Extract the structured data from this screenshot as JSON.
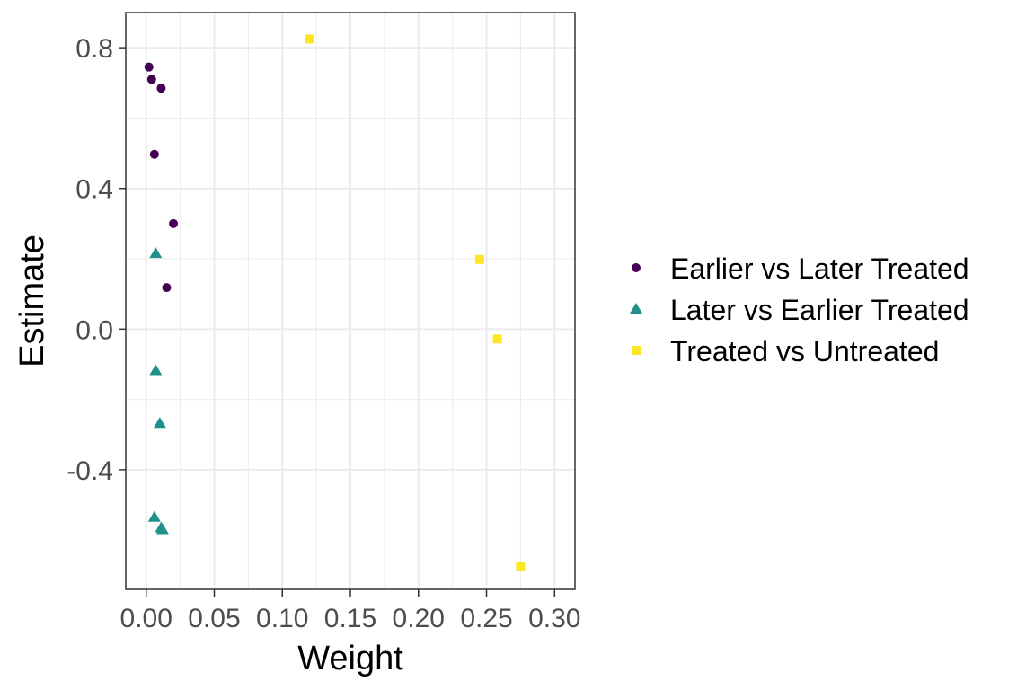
{
  "chart_data": {
    "type": "scatter",
    "title": "",
    "xlabel": "Weight",
    "ylabel": "Estimate",
    "xlim": [
      -0.015,
      0.315
    ],
    "ylim": [
      -0.74,
      0.9
    ],
    "x_ticks": [
      {
        "value": 0.0,
        "label": "0.00"
      },
      {
        "value": 0.05,
        "label": "0.05"
      },
      {
        "value": 0.1,
        "label": "0.10"
      },
      {
        "value": 0.15,
        "label": "0.15"
      },
      {
        "value": 0.2,
        "label": "0.20"
      },
      {
        "value": 0.25,
        "label": "0.25"
      },
      {
        "value": 0.3,
        "label": "0.30"
      }
    ],
    "y_ticks": [
      {
        "value": 0.8,
        "label": "0.8"
      },
      {
        "value": 0.4,
        "label": "0.4"
      },
      {
        "value": 0.0,
        "label": "0.0"
      },
      {
        "value": -0.4,
        "label": "-0.4"
      }
    ],
    "grid": true,
    "legend_position": "right",
    "series": [
      {
        "name": "Earlier vs Later Treated",
        "color": "#440154",
        "shape": "circle",
        "points": [
          {
            "x": 0.002,
            "y": 0.745
          },
          {
            "x": 0.004,
            "y": 0.71
          },
          {
            "x": 0.011,
            "y": 0.685
          },
          {
            "x": 0.006,
            "y": 0.497
          },
          {
            "x": 0.02,
            "y": 0.3
          },
          {
            "x": 0.015,
            "y": 0.118
          }
        ]
      },
      {
        "name": "Later vs Earlier Treated",
        "color": "#21908C",
        "shape": "triangle",
        "points": [
          {
            "x": 0.007,
            "y": 0.215
          },
          {
            "x": 0.007,
            "y": -0.118
          },
          {
            "x": 0.01,
            "y": -0.268
          },
          {
            "x": 0.006,
            "y": -0.535
          },
          {
            "x": 0.011,
            "y": -0.565
          },
          {
            "x": 0.012,
            "y": -0.57
          }
        ]
      },
      {
        "name": "Treated vs Untreated",
        "color": "#FDE725",
        "shape": "square",
        "points": [
          {
            "x": 0.12,
            "y": 0.825
          },
          {
            "x": 0.245,
            "y": 0.198
          },
          {
            "x": 0.258,
            "y": -0.028
          },
          {
            "x": 0.275,
            "y": -0.675
          }
        ]
      }
    ]
  }
}
